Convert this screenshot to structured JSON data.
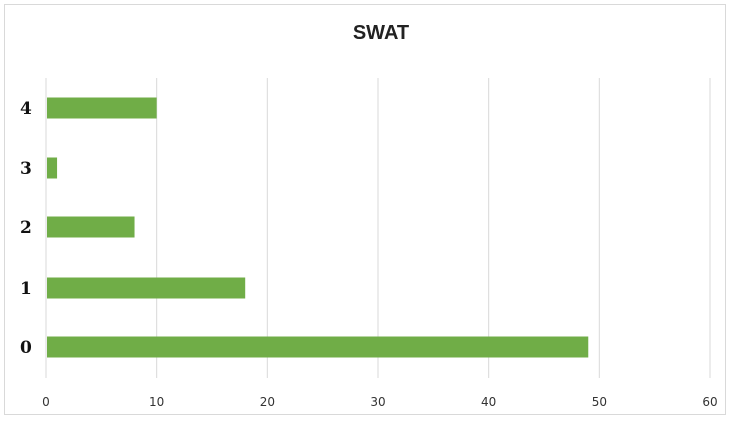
{
  "chart_data": {
    "type": "bar",
    "orientation": "horizontal",
    "title": "SWAT",
    "categories": [
      "0",
      "1",
      "2",
      "3",
      "4"
    ],
    "values": [
      49,
      18,
      8,
      1,
      10
    ],
    "xlim": [
      0,
      60
    ],
    "x_ticks": [
      0,
      10,
      20,
      30,
      40,
      50,
      60
    ],
    "xlabel": "",
    "ylabel": "",
    "grid": "vertical",
    "bar_color": "#70ad47",
    "grid_color": "#d9d9d9"
  }
}
